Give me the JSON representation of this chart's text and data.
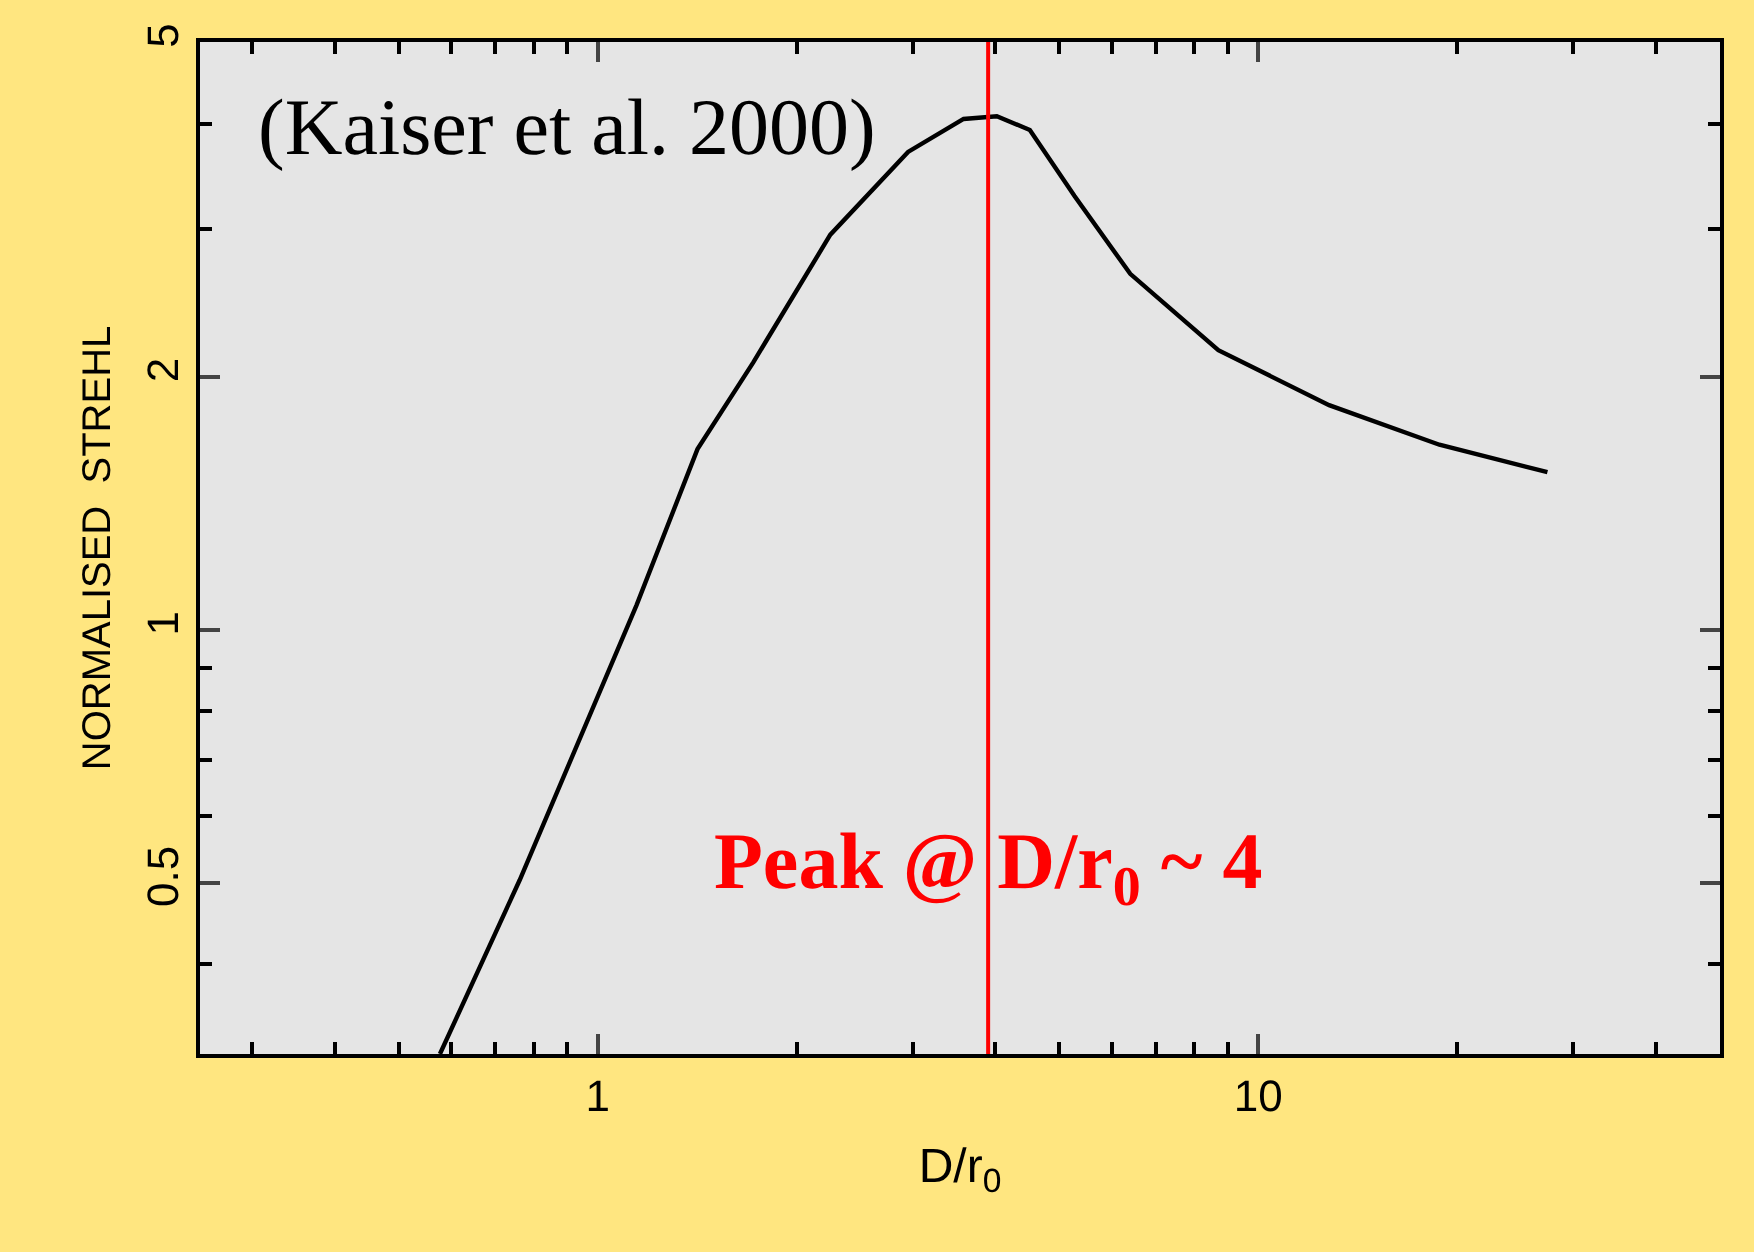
{
  "chart_data": {
    "type": "line",
    "xlabel": "D/r$_{0}$",
    "ylabel": "NORMALISED  STREHL",
    "log": "xy",
    "x": [
      0.577,
      0.762,
      1.145,
      1.416,
      1.72,
      2.25,
      2.95,
      3.58,
      4.02,
      4.51,
      5.27,
      6.4,
      8.7,
      12.8,
      18.8,
      27.4
    ],
    "series": [
      {
        "color": "#000000",
        "values": [
          0.313,
          0.504,
          1.07,
          1.64,
          2.08,
          2.95,
          3.7,
          4.05,
          4.08,
          3.93,
          3.28,
          2.65,
          2.15,
          1.85,
          1.66,
          1.54
        ]
      }
    ],
    "xlim": [
      0.25,
      50
    ],
    "ylim": [
      0.313,
      5
    ],
    "xticks": [
      1,
      10
    ],
    "yticks": [
      0.5,
      1,
      2,
      5
    ],
    "ref_lines": [
      {
        "axis": "x",
        "value": 3.9,
        "color": "#ff0000",
        "label": "Peak @ D/r$_{0}$ ~ 4"
      }
    ],
    "annotations": [
      "(Kaiser et al. 2000)"
    ],
    "grid": false,
    "marker": "none",
    "line_style": "solid"
  }
}
